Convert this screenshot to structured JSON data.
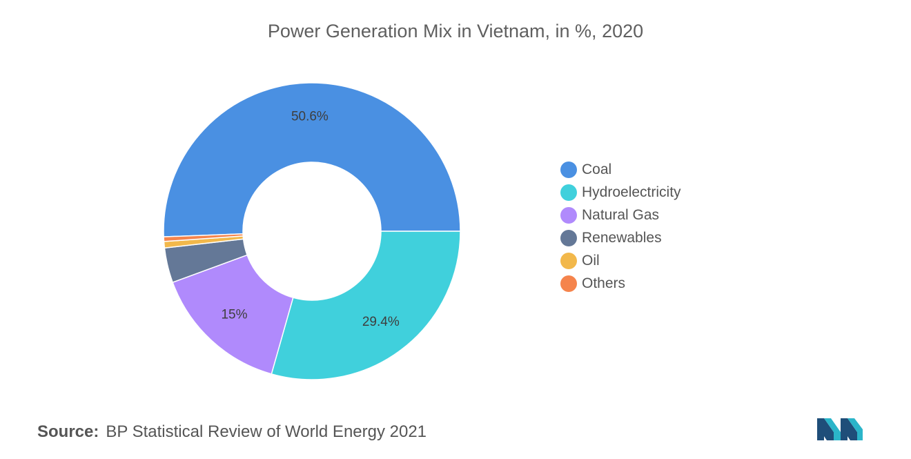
{
  "chart_data": {
    "type": "pie",
    "title": "Power Generation Mix in Vietnam, in %, 2020",
    "legend_position": "right",
    "slices": [
      {
        "name": "Coal",
        "value": 50.6,
        "label": "50.6%",
        "color": "#4a90e2"
      },
      {
        "name": "Hydroelectricity",
        "value": 29.4,
        "label": "29.4%",
        "color": "#40d0dc"
      },
      {
        "name": "Natural Gas",
        "value": 15,
        "label": "15%",
        "color": "#b08afc"
      },
      {
        "name": "Renewables",
        "value": 3.8,
        "label": "",
        "color": "#647897"
      },
      {
        "name": "Oil",
        "value": 0.7,
        "label": "",
        "color": "#f2b84b"
      },
      {
        "name": "Others",
        "value": 0.5,
        "label": "",
        "color": "#f5844c"
      }
    ]
  },
  "source": {
    "key": "Source:",
    "text": "BP Statistical Review of World Energy 2021"
  },
  "logo": {
    "icon": "mordor-intelligence-logo-icon",
    "colors": [
      "#1f4e79",
      "#2bb5c9"
    ]
  }
}
